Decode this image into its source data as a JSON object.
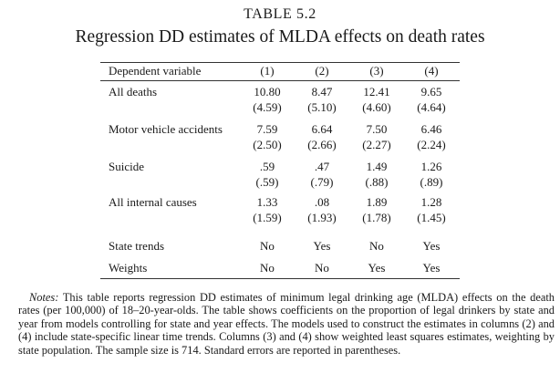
{
  "table": {
    "label": "TABLE 5.2",
    "title": "Regression DD estimates of MLDA effects on death rates",
    "header": {
      "first": "Dependent variable",
      "columns": [
        "(1)",
        "(2)",
        "(3)",
        "(4)"
      ]
    },
    "rows": [
      {
        "label": "All deaths",
        "coef": [
          "10.80",
          "8.47",
          "12.41",
          "9.65"
        ],
        "se": [
          "(4.59)",
          "(5.10)",
          "(4.60)",
          "(4.64)"
        ]
      },
      {
        "label": "Motor vehicle accidents",
        "coef": [
          "7.59",
          "6.64",
          "7.50",
          "6.46"
        ],
        "se": [
          "(2.50)",
          "(2.66)",
          "(2.27)",
          "(2.24)"
        ]
      },
      {
        "label": "Suicide",
        "coef": [
          ".59",
          ".47",
          "1.49",
          "1.26"
        ],
        "se": [
          "(.59)",
          "(.79)",
          "(.88)",
          "(.89)"
        ]
      },
      {
        "label": "All internal causes",
        "coef": [
          "1.33",
          ".08",
          "1.89",
          "1.28"
        ],
        "se": [
          "(1.59)",
          "(1.93)",
          "(1.78)",
          "(1.45)"
        ]
      }
    ],
    "specs": [
      {
        "label": "State trends",
        "values": [
          "No",
          "Yes",
          "No",
          "Yes"
        ]
      },
      {
        "label": "Weights",
        "values": [
          "No",
          "No",
          "Yes",
          "Yes"
        ]
      }
    ]
  },
  "notes": {
    "lead": "Notes:",
    "text": "This table reports regression DD estimates of minimum legal drinking age (MLDA) effects on the death rates (per 100,000) of 18–20-year-olds. The table shows coefficients on the proportion of legal drinkers by state and year from models controlling for state and year effects. The models used to construct the estimates in columns (2) and (4) include state-specific linear time trends. Columns (3) and (4) show weighted least squares estimates, weighting by state population. The sample size is 714. Standard errors are reported in parentheses."
  }
}
